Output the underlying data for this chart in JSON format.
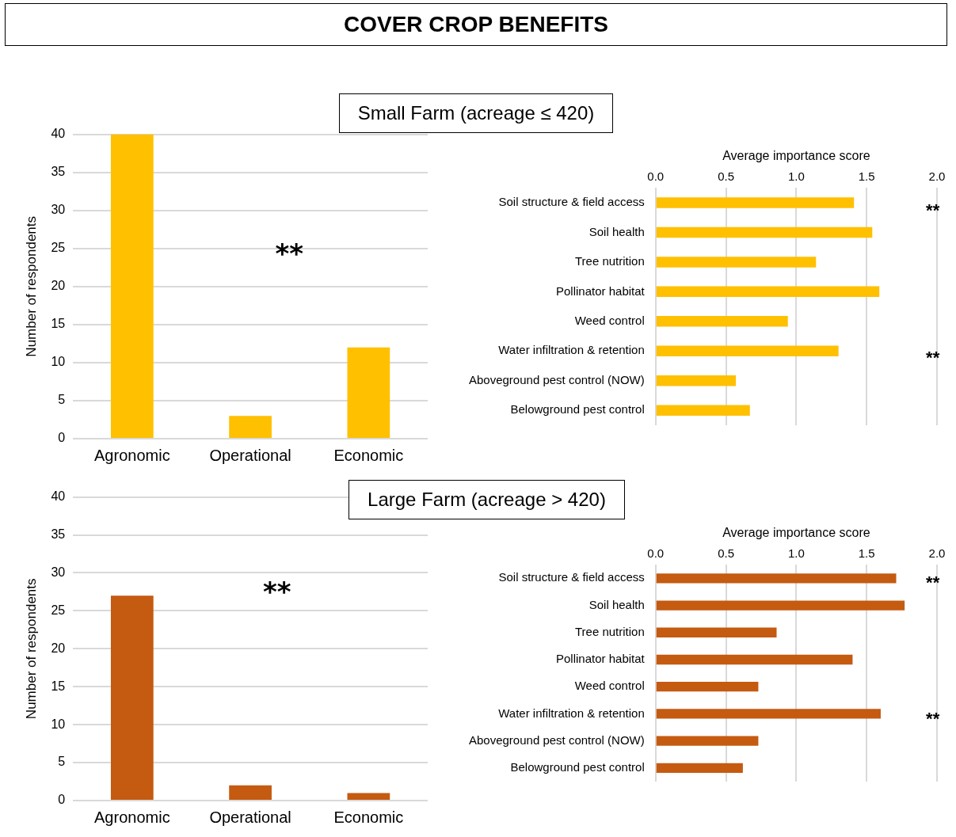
{
  "chart_data": [
    {
      "type": "bar",
      "title": "COVER CROP BENEFITS",
      "subtitle": "Small Farm (acreage ≤ 420)",
      "ylabel": "Number of respondents",
      "categories": [
        "Agronomic",
        "Operational",
        "Economic"
      ],
      "values": [
        40,
        3,
        12
      ],
      "color": "#ffc000",
      "ylim": [
        0,
        40
      ],
      "yticks": [
        0,
        5,
        10,
        15,
        20,
        25,
        30,
        35,
        40
      ],
      "grid": "y",
      "annotations": [
        "**"
      ]
    },
    {
      "type": "bar",
      "orientation": "horizontal",
      "xlabel": "Average importance score",
      "categories": [
        "Soil structure & field access",
        "Soil health",
        "Tree nutrition",
        "Pollinator habitat",
        "Weed control",
        "Water infiltration & retention",
        "Aboveground pest control (NOW)",
        "Belowground pest control"
      ],
      "values": [
        1.41,
        1.54,
        1.14,
        1.59,
        0.94,
        1.3,
        0.57,
        0.67
      ],
      "color": "#ffc000",
      "xlim": [
        0,
        2
      ],
      "xticks": [
        {
          "value": 0,
          "label": "0.0"
        },
        {
          "value": 0.5,
          "label": "0.5"
        },
        {
          "value": 1,
          "label": "1.0"
        },
        {
          "value": 1.5,
          "label": "1.5"
        },
        {
          "value": 2,
          "label": "2.0"
        }
      ],
      "grid": "x",
      "annotations": [
        "**",
        "**"
      ]
    },
    {
      "type": "bar",
      "title": "Large Farm (acreage > 420)",
      "ylabel": "Number of respondents",
      "categories": [
        "Agronomic",
        "Operational",
        "Economic"
      ],
      "values": [
        27,
        2,
        1
      ],
      "color": "#c55a11",
      "ylim": [
        0,
        40
      ],
      "yticks": [
        0,
        5,
        10,
        15,
        20,
        25,
        30,
        35,
        40
      ],
      "grid": "y",
      "annotations": [
        "**"
      ]
    },
    {
      "type": "bar",
      "orientation": "horizontal",
      "xlabel": "Average importance score",
      "categories": [
        "Soil structure & field access",
        "Soil health",
        "Tree nutrition",
        "Pollinator habitat",
        "Weed control",
        "Water infiltration & retention",
        "Aboveground pest control (NOW)",
        "Belowground pest control"
      ],
      "values": [
        1.71,
        1.77,
        0.86,
        1.4,
        0.73,
        1.6,
        0.73,
        0.62
      ],
      "color": "#c55a11",
      "xlim": [
        0,
        2
      ],
      "xticks": [
        {
          "value": 0,
          "label": "0.0"
        },
        {
          "value": 0.5,
          "label": "0.5"
        },
        {
          "value": 1,
          "label": "1.0"
        },
        {
          "value": 1.5,
          "label": "1.5"
        },
        {
          "value": 2,
          "label": "2.0"
        }
      ],
      "grid": "x",
      "annotations": [
        "**",
        "**"
      ]
    }
  ]
}
